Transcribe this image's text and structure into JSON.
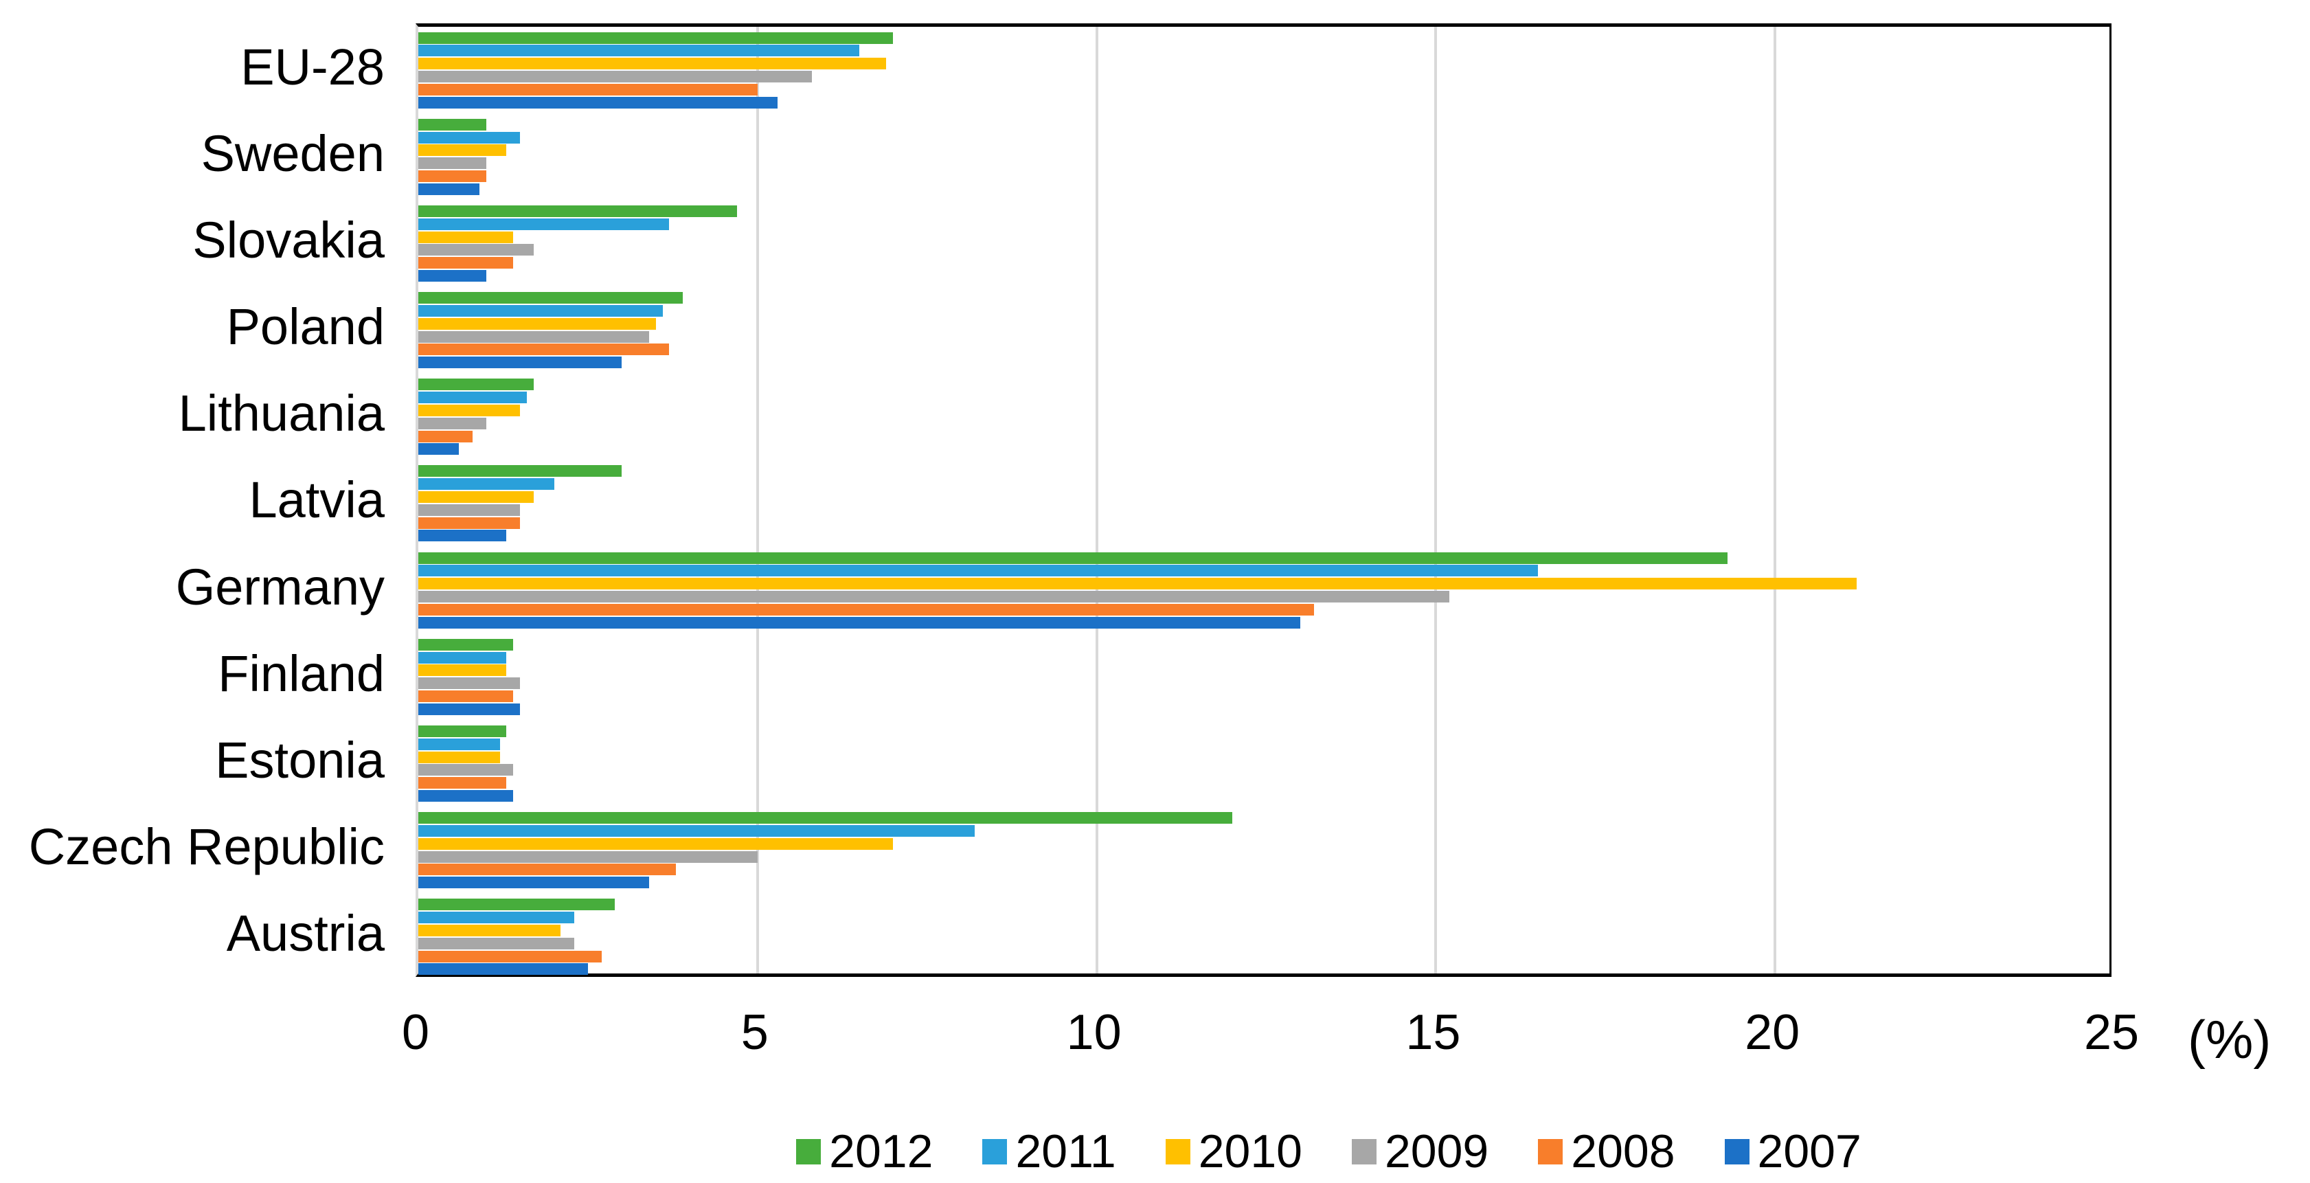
{
  "chart_data": {
    "type": "bar",
    "orientation": "horizontal",
    "title": "",
    "xlabel": "(%)",
    "ylabel": "",
    "xlim": [
      0,
      25
    ],
    "xticks": [
      0,
      5,
      10,
      15,
      20,
      25
    ],
    "grid": true,
    "legend_position": "bottom",
    "categories": [
      "EU-28",
      "Sweden",
      "Slovakia",
      "Poland",
      "Lithuania",
      "Latvia",
      "Germany",
      "Finland",
      "Estonia",
      "Czech Republic",
      "Austria"
    ],
    "series": [
      {
        "name": "2012",
        "color": "#47AD3C",
        "values": [
          7.0,
          1.0,
          4.7,
          3.9,
          1.7,
          3.0,
          19.3,
          1.4,
          1.3,
          12.0,
          2.9
        ]
      },
      {
        "name": "2011",
        "color": "#2AA0DA",
        "values": [
          6.5,
          1.5,
          3.7,
          3.6,
          1.6,
          2.0,
          16.5,
          1.3,
          1.2,
          8.2,
          2.3
        ]
      },
      {
        "name": "2010",
        "color": "#FFC000",
        "values": [
          6.9,
          1.3,
          1.4,
          3.5,
          1.5,
          1.7,
          21.2,
          1.3,
          1.2,
          7.0,
          2.1
        ]
      },
      {
        "name": "2009",
        "color": "#A7A7A7",
        "values": [
          5.8,
          1.0,
          1.7,
          3.4,
          1.0,
          1.5,
          15.2,
          1.5,
          1.4,
          5.0,
          2.3
        ]
      },
      {
        "name": "2008",
        "color": "#F87E2B",
        "values": [
          5.0,
          1.0,
          1.4,
          3.7,
          0.8,
          1.5,
          13.2,
          1.4,
          1.3,
          3.8,
          2.7
        ]
      },
      {
        "name": "2007",
        "color": "#1C71C7",
        "values": [
          5.3,
          0.9,
          1.0,
          3.0,
          0.6,
          1.3,
          13.0,
          1.5,
          1.4,
          3.4,
          2.5
        ]
      }
    ]
  },
  "style": {
    "grid_color": "#D9D9D9",
    "axis_color": "#000000",
    "text_color": "#000000",
    "background": "#FFFFFF"
  }
}
